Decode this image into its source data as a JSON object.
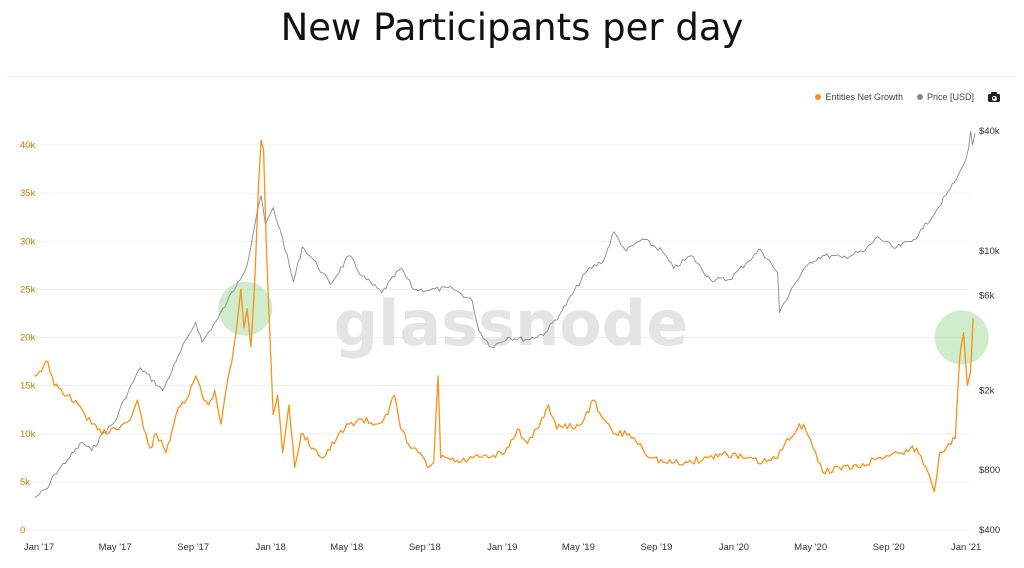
{
  "title": "New Participants per day",
  "legend": {
    "series1": "Entities Net Growth",
    "series2": "Price [USD]",
    "camera_icon": "camera-icon"
  },
  "watermark": "glassnode",
  "colors": {
    "orange": "#f7931a",
    "gray": "#8a8a8a",
    "left_axis": "#c8780f",
    "highlight": "#a8dca0"
  },
  "chart_data": {
    "type": "line",
    "x_ticks": [
      "Jan '17",
      "May '17",
      "Sep '17",
      "Jan '18",
      "May '18",
      "Sep '18",
      "Jan '19",
      "May '19",
      "Sep '19",
      "Jan '20",
      "May '20",
      "Sep '20",
      "Jan '21"
    ],
    "x_range": [
      "2017-01-01",
      "2021-01-15"
    ],
    "y_left": {
      "ticks": [
        0,
        5000,
        10000,
        15000,
        20000,
        25000,
        30000,
        35000,
        40000
      ],
      "labels": [
        "0",
        "5k",
        "10k",
        "15k",
        "20k",
        "25k",
        "30k",
        "35k",
        "40k"
      ],
      "range": [
        0,
        40000
      ]
    },
    "y_right": {
      "scale": "log",
      "ticks": [
        400,
        800,
        2000,
        6000,
        10000,
        40000
      ],
      "labels": [
        "$400",
        "$800",
        "$2k",
        "$6k",
        "$10k",
        "$40k"
      ],
      "range": [
        400,
        40000
      ]
    },
    "series": [
      {
        "name": "Entities Net Growth",
        "axis": "left",
        "points": [
          [
            "2016-12-25",
            16000
          ],
          [
            "2017-01-15",
            17500
          ],
          [
            "2017-01-25",
            15000
          ],
          [
            "2017-02-15",
            14000
          ],
          [
            "2017-03-10",
            12500
          ],
          [
            "2017-03-25",
            11000
          ],
          [
            "2017-04-10",
            10000
          ],
          [
            "2017-04-25",
            10500
          ],
          [
            "2017-05-10",
            10800
          ],
          [
            "2017-05-25",
            11500
          ],
          [
            "2017-06-05",
            13500
          ],
          [
            "2017-06-15",
            10500
          ],
          [
            "2017-06-25",
            8500
          ],
          [
            "2017-07-05",
            10000
          ],
          [
            "2017-07-20",
            8000
          ],
          [
            "2017-08-05",
            12000
          ],
          [
            "2017-08-25",
            14000
          ],
          [
            "2017-09-05",
            16000
          ],
          [
            "2017-09-15",
            14000
          ],
          [
            "2017-09-25",
            13000
          ],
          [
            "2017-10-05",
            14500
          ],
          [
            "2017-10-15",
            11000
          ],
          [
            "2017-10-25",
            15500
          ],
          [
            "2017-11-01",
            17500
          ],
          [
            "2017-11-10",
            22000
          ],
          [
            "2017-11-15",
            25000
          ],
          [
            "2017-11-20",
            21000
          ],
          [
            "2017-11-25",
            23000
          ],
          [
            "2017-12-01",
            19000
          ],
          [
            "2017-12-07",
            26000
          ],
          [
            "2017-12-13",
            36000
          ],
          [
            "2017-12-17",
            40500
          ],
          [
            "2017-12-21",
            39500
          ],
          [
            "2017-12-25",
            30000
          ],
          [
            "2017-12-31",
            20000
          ],
          [
            "2018-01-05",
            12000
          ],
          [
            "2018-01-12",
            14000
          ],
          [
            "2018-01-20",
            8000
          ],
          [
            "2018-01-30",
            13000
          ],
          [
            "2018-02-08",
            6500
          ],
          [
            "2018-02-18",
            10000
          ],
          [
            "2018-03-10",
            8500
          ],
          [
            "2018-03-25",
            7500
          ],
          [
            "2018-04-15",
            9500
          ],
          [
            "2018-05-05",
            11000
          ],
          [
            "2018-05-25",
            11500
          ],
          [
            "2018-06-15",
            11000
          ],
          [
            "2018-07-05",
            12000
          ],
          [
            "2018-07-15",
            14000
          ],
          [
            "2018-07-25",
            10500
          ],
          [
            "2018-08-10",
            8500
          ],
          [
            "2018-08-25",
            8000
          ],
          [
            "2018-09-05",
            6500
          ],
          [
            "2018-09-15",
            7000
          ],
          [
            "2018-09-22",
            16000
          ],
          [
            "2018-09-26",
            7500
          ],
          [
            "2018-10-05",
            7500
          ],
          [
            "2018-10-25",
            7000
          ],
          [
            "2018-11-15",
            7500
          ],
          [
            "2018-12-10",
            7500
          ],
          [
            "2019-01-05",
            8000
          ],
          [
            "2019-01-25",
            10500
          ],
          [
            "2019-02-10",
            9000
          ],
          [
            "2019-02-25",
            10500
          ],
          [
            "2019-03-15",
            13000
          ],
          [
            "2019-03-28",
            10500
          ],
          [
            "2019-04-10",
            11000
          ],
          [
            "2019-04-25",
            10500
          ],
          [
            "2019-05-10",
            11500
          ],
          [
            "2019-05-25",
            13500
          ],
          [
            "2019-06-10",
            11500
          ],
          [
            "2019-06-25",
            10000
          ],
          [
            "2019-07-20",
            10000
          ],
          [
            "2019-08-10",
            8500
          ],
          [
            "2019-08-25",
            7500
          ],
          [
            "2019-09-15",
            7000
          ],
          [
            "2019-10-20",
            7000
          ],
          [
            "2019-11-20",
            7500
          ],
          [
            "2019-12-20",
            8000
          ],
          [
            "2020-01-15",
            7500
          ],
          [
            "2020-02-15",
            7000
          ],
          [
            "2020-03-10",
            7500
          ],
          [
            "2020-03-25",
            9500
          ],
          [
            "2020-04-10",
            10500
          ],
          [
            "2020-04-20",
            11000
          ],
          [
            "2020-05-05",
            8500
          ],
          [
            "2020-05-20",
            6000
          ],
          [
            "2020-06-15",
            6500
          ],
          [
            "2020-07-15",
            6500
          ],
          [
            "2020-08-15",
            7500
          ],
          [
            "2020-09-15",
            8000
          ],
          [
            "2020-10-15",
            8500
          ],
          [
            "2020-11-05",
            5500
          ],
          [
            "2020-11-12",
            4000
          ],
          [
            "2020-11-20",
            8000
          ],
          [
            "2020-12-05",
            9000
          ],
          [
            "2020-12-15",
            9500
          ],
          [
            "2020-12-22",
            18000
          ],
          [
            "2020-12-28",
            20500
          ],
          [
            "2021-01-03",
            15000
          ],
          [
            "2021-01-08",
            16500
          ],
          [
            "2021-01-12",
            22000
          ]
        ]
      },
      {
        "name": "Price [USD]",
        "axis": "right",
        "points": [
          [
            "2016-12-25",
            580
          ],
          [
            "2017-01-15",
            650
          ],
          [
            "2017-01-25",
            760
          ],
          [
            "2017-02-15",
            900
          ],
          [
            "2017-03-10",
            1100
          ],
          [
            "2017-03-25",
            1000
          ],
          [
            "2017-04-10",
            1200
          ],
          [
            "2017-05-01",
            1400
          ],
          [
            "2017-05-15",
            1800
          ],
          [
            "2017-06-10",
            2600
          ],
          [
            "2017-07-15",
            2000
          ],
          [
            "2017-08-05",
            2800
          ],
          [
            "2017-08-25",
            3800
          ],
          [
            "2017-09-05",
            4400
          ],
          [
            "2017-09-15",
            3500
          ],
          [
            "2017-10-10",
            4600
          ],
          [
            "2017-10-25",
            5600
          ],
          [
            "2017-11-10",
            7000
          ],
          [
            "2017-11-25",
            8500
          ],
          [
            "2017-12-08",
            14000
          ],
          [
            "2017-12-17",
            19000
          ],
          [
            "2017-12-24",
            13500
          ],
          [
            "2018-01-05",
            16500
          ],
          [
            "2018-01-20",
            11500
          ],
          [
            "2018-02-06",
            7000
          ],
          [
            "2018-02-20",
            10500
          ],
          [
            "2018-03-10",
            9000
          ],
          [
            "2018-04-05",
            6800
          ],
          [
            "2018-05-05",
            9500
          ],
          [
            "2018-05-25",
            7500
          ],
          [
            "2018-06-25",
            6200
          ],
          [
            "2018-07-25",
            8200
          ],
          [
            "2018-08-15",
            6400
          ],
          [
            "2018-09-10",
            6400
          ],
          [
            "2018-10-15",
            6500
          ],
          [
            "2018-11-15",
            5600
          ],
          [
            "2018-11-25",
            4000
          ],
          [
            "2018-12-15",
            3300
          ],
          [
            "2019-01-10",
            3700
          ],
          [
            "2019-02-10",
            3600
          ],
          [
            "2019-03-10",
            3900
          ],
          [
            "2019-04-05",
            5000
          ],
          [
            "2019-05-15",
            8000
          ],
          [
            "2019-06-10",
            9000
          ],
          [
            "2019-06-26",
            12500
          ],
          [
            "2019-07-15",
            10000
          ],
          [
            "2019-08-10",
            11500
          ],
          [
            "2019-09-10",
            10000
          ],
          [
            "2019-09-28",
            8200
          ],
          [
            "2019-10-26",
            9500
          ],
          [
            "2019-11-25",
            7200
          ],
          [
            "2019-12-25",
            7200
          ],
          [
            "2020-01-20",
            8700
          ],
          [
            "2020-02-12",
            10200
          ],
          [
            "2020-03-10",
            7800
          ],
          [
            "2020-03-13",
            4900
          ],
          [
            "2020-04-01",
            6500
          ],
          [
            "2020-04-30",
            8800
          ],
          [
            "2020-05-20",
            9500
          ],
          [
            "2020-06-20",
            9300
          ],
          [
            "2020-07-25",
            10000
          ],
          [
            "2020-08-15",
            11800
          ],
          [
            "2020-09-10",
            10300
          ],
          [
            "2020-10-10",
            11400
          ],
          [
            "2020-10-25",
            13000
          ],
          [
            "2020-11-15",
            16000
          ],
          [
            "2020-11-30",
            19000
          ],
          [
            "2020-12-17",
            23000
          ],
          [
            "2020-12-28",
            27000
          ],
          [
            "2021-01-05",
            33000
          ],
          [
            "2021-01-08",
            40000
          ],
          [
            "2021-01-11",
            34000
          ],
          [
            "2021-01-15",
            39000
          ]
        ]
      }
    ],
    "highlights": [
      {
        "date": "2017-11-22",
        "value": 23000
      },
      {
        "date": "2020-12-25",
        "value": 20000
      }
    ]
  }
}
